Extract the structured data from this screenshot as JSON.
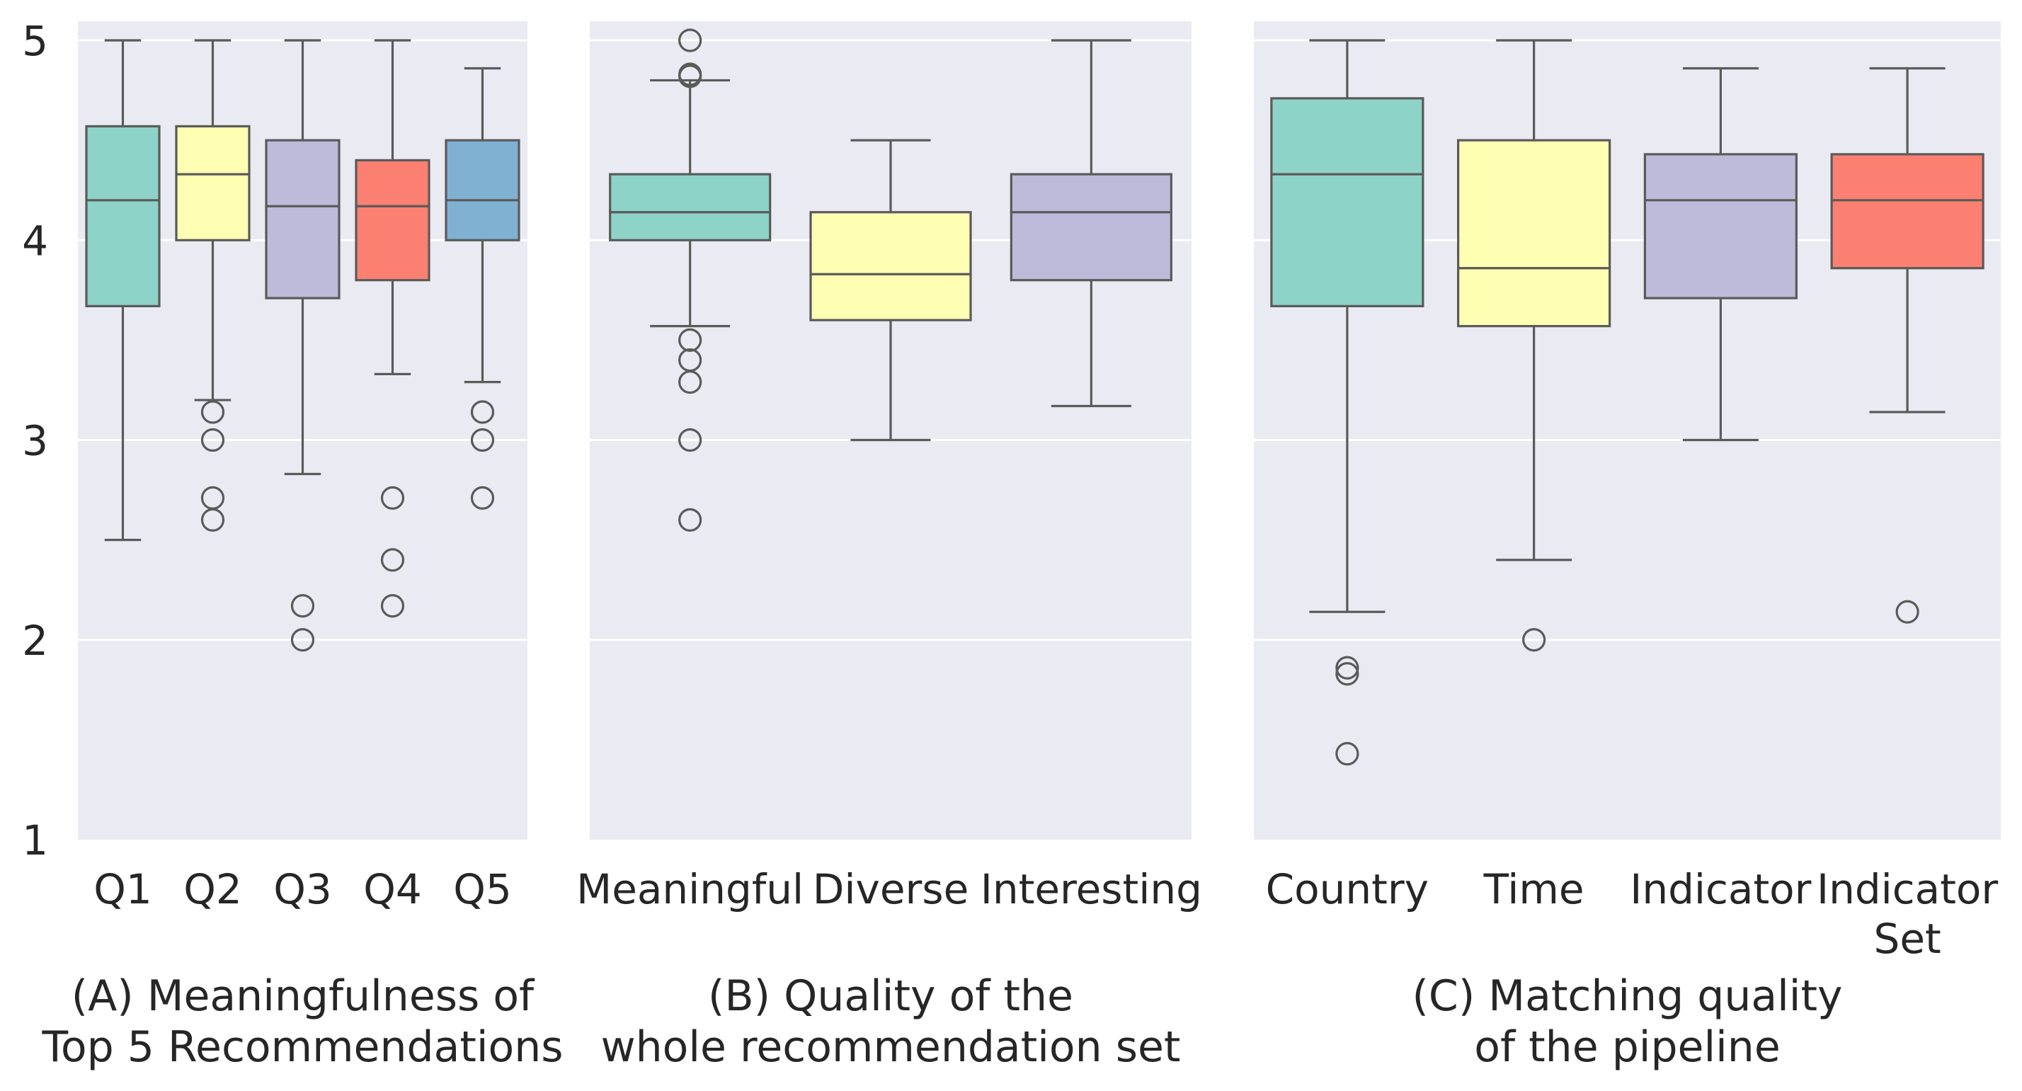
{
  "chart_data": [
    {
      "type": "box",
      "caption": [
        "(A) Meaningfulness of",
        "Top 5 Recommendations"
      ],
      "categories": [
        {
          "label": [
            "Q1"
          ],
          "color": "#8dd3c7",
          "min": 2.5,
          "q1": 3.67,
          "median": 4.2,
          "q3": 4.57,
          "max": 5.0,
          "outliers": []
        },
        {
          "label": [
            "Q2"
          ],
          "color": "#ffffb3",
          "min": 3.2,
          "q1": 4.0,
          "median": 4.33,
          "q3": 4.57,
          "max": 5.0,
          "outliers": [
            3.14,
            3.0,
            2.71,
            2.6
          ]
        },
        {
          "label": [
            "Q3"
          ],
          "color": "#bebada",
          "min": 2.83,
          "q1": 3.71,
          "median": 4.17,
          "q3": 4.5,
          "max": 5.0,
          "outliers": [
            2.17,
            2.0
          ]
        },
        {
          "label": [
            "Q4"
          ],
          "color": "#fb8072",
          "min": 3.33,
          "q1": 3.8,
          "median": 4.17,
          "q3": 4.4,
          "max": 5.0,
          "outliers": [
            2.71,
            2.4,
            2.17
          ]
        },
        {
          "label": [
            "Q5"
          ],
          "color": "#80b1d3",
          "min": 3.29,
          "q1": 4.0,
          "median": 4.2,
          "q3": 4.5,
          "max": 4.86,
          "outliers": [
            3.14,
            3.0,
            2.71
          ]
        }
      ]
    },
    {
      "type": "box",
      "caption": [
        "(B) Quality of the",
        "whole recommendation set"
      ],
      "categories": [
        {
          "label": [
            "Meaningful"
          ],
          "color": "#8dd3c7",
          "min": 3.57,
          "q1": 4.0,
          "median": 4.14,
          "q3": 4.33,
          "max": 4.8,
          "outliers": [
            5.0,
            4.83,
            4.82,
            3.5,
            3.4,
            3.29,
            3.0,
            2.6
          ]
        },
        {
          "label": [
            "Diverse"
          ],
          "color": "#ffffb3",
          "min": 3.0,
          "q1": 3.6,
          "median": 3.83,
          "q3": 4.14,
          "max": 4.5,
          "outliers": []
        },
        {
          "label": [
            "Interesting"
          ],
          "color": "#bebada",
          "min": 3.17,
          "q1": 3.8,
          "median": 4.14,
          "q3": 4.33,
          "max": 5.0,
          "outliers": []
        }
      ]
    },
    {
      "type": "box",
      "caption": [
        "(C) Matching quality",
        "of the pipeline"
      ],
      "categories": [
        {
          "label": [
            "Country"
          ],
          "color": "#8dd3c7",
          "min": 2.14,
          "q1": 3.67,
          "median": 4.33,
          "q3": 4.71,
          "max": 5.0,
          "outliers": [
            1.86,
            1.83,
            1.43
          ]
        },
        {
          "label": [
            "Time"
          ],
          "color": "#ffffb3",
          "min": 2.4,
          "q1": 3.57,
          "median": 3.86,
          "q3": 4.5,
          "max": 5.0,
          "outliers": [
            2.0
          ]
        },
        {
          "label": [
            "Indicator"
          ],
          "color": "#bebada",
          "min": 3.0,
          "q1": 3.71,
          "median": 4.2,
          "q3": 4.43,
          "max": 4.86,
          "outliers": []
        },
        {
          "label": [
            "Indicator",
            "Set"
          ],
          "color": "#fb8072",
          "min": 3.14,
          "q1": 3.86,
          "median": 4.2,
          "q3": 4.43,
          "max": 4.86,
          "outliers": [
            2.14
          ]
        }
      ]
    }
  ],
  "y_axis": {
    "ylim": [
      1,
      5
    ],
    "ticks": [
      "1",
      "2",
      "3",
      "4",
      "5"
    ],
    "grid": true
  },
  "colors": {
    "panel_background": "#eaeaf2",
    "grid": "#ffffff",
    "line": "#5a5a5a"
  }
}
